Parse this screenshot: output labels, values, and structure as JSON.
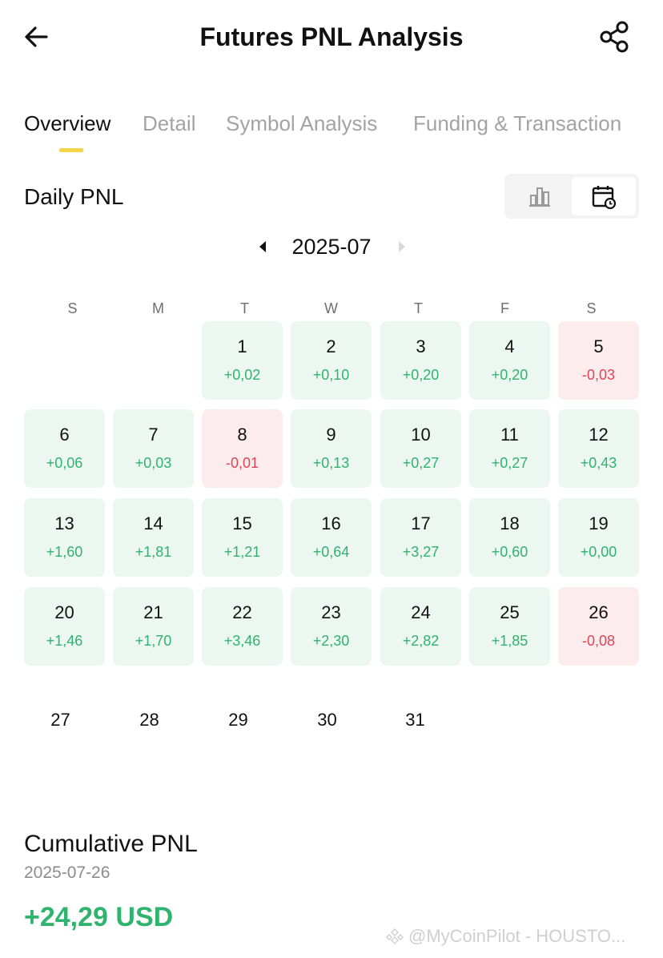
{
  "header": {
    "title": "Futures PNL Analysis",
    "back_icon": "arrow-left-icon",
    "share_icon": "share-icon"
  },
  "tabs": [
    {
      "label": "Overview",
      "active": true
    },
    {
      "label": "Detail",
      "active": false
    },
    {
      "label": "Symbol Analysis",
      "active": false
    },
    {
      "label": "Funding & Transaction",
      "active": false
    }
  ],
  "daily": {
    "title": "Daily PNL",
    "month": "2025-07",
    "view_options": [
      {
        "icon": "bar-chart-icon",
        "selected": false
      },
      {
        "icon": "calendar-icon",
        "selected": true
      }
    ]
  },
  "weekdays": [
    "S",
    "M",
    "T",
    "W",
    "T",
    "F",
    "S"
  ],
  "calendar": {
    "days": [
      {
        "day": "1",
        "value": "+0,02",
        "trend": "pos"
      },
      {
        "day": "2",
        "value": "+0,10",
        "trend": "pos"
      },
      {
        "day": "3",
        "value": "+0,20",
        "trend": "pos"
      },
      {
        "day": "4",
        "value": "+0,20",
        "trend": "pos"
      },
      {
        "day": "5",
        "value": "-0,03",
        "trend": "neg"
      },
      {
        "day": "6",
        "value": "+0,06",
        "trend": "pos"
      },
      {
        "day": "7",
        "value": "+0,03",
        "trend": "pos"
      },
      {
        "day": "8",
        "value": "-0,01",
        "trend": "neg"
      },
      {
        "day": "9",
        "value": "+0,13",
        "trend": "pos"
      },
      {
        "day": "10",
        "value": "+0,27",
        "trend": "pos"
      },
      {
        "day": "11",
        "value": "+0,27",
        "trend": "pos"
      },
      {
        "day": "12",
        "value": "+0,43",
        "trend": "pos"
      },
      {
        "day": "13",
        "value": "+1,60",
        "trend": "pos"
      },
      {
        "day": "14",
        "value": "+1,81",
        "trend": "pos"
      },
      {
        "day": "15",
        "value": "+1,21",
        "trend": "pos"
      },
      {
        "day": "16",
        "value": "+0,64",
        "trend": "pos"
      },
      {
        "day": "17",
        "value": "+3,27",
        "trend": "pos"
      },
      {
        "day": "18",
        "value": "+0,60",
        "trend": "pos"
      },
      {
        "day": "19",
        "value": "+0,00",
        "trend": "pos"
      },
      {
        "day": "20",
        "value": "+1,46",
        "trend": "pos"
      },
      {
        "day": "21",
        "value": "+1,70",
        "trend": "pos"
      },
      {
        "day": "22",
        "value": "+3,46",
        "trend": "pos"
      },
      {
        "day": "23",
        "value": "+2,30",
        "trend": "pos"
      },
      {
        "day": "24",
        "value": "+2,82",
        "trend": "pos"
      },
      {
        "day": "25",
        "value": "+1,85",
        "trend": "pos"
      },
      {
        "day": "26",
        "value": "-0,08",
        "trend": "neg"
      }
    ],
    "future_days": [
      "27",
      "28",
      "29",
      "30",
      "31"
    ]
  },
  "cumulative": {
    "title": "Cumulative PNL",
    "date": "2025-07-26",
    "value": "+24,29 USD"
  },
  "watermark": "@MyCoinPilot - HOUSTO...",
  "colors": {
    "positive": "#2fb36e",
    "negative": "#e04455",
    "accent": "#f7d54a"
  }
}
